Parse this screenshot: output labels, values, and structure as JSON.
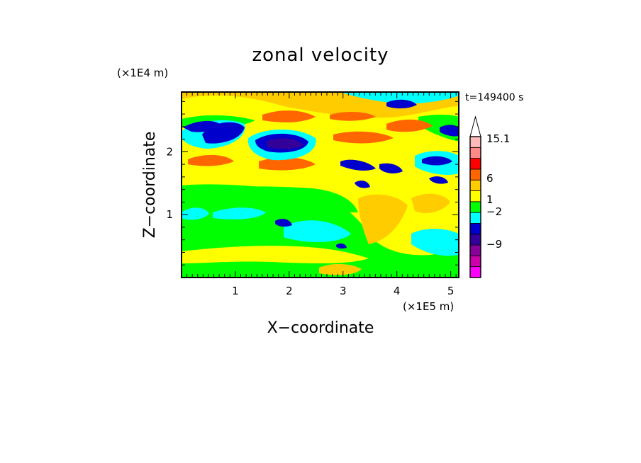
{
  "chart_data": {
    "type": "heatmap",
    "title": "zonal velocity",
    "xlabel": "X−coordinate",
    "ylabel": "Z−coordinate",
    "x_unit_label": "(×1E5 m)",
    "y_unit_label": "(×1E4 m)",
    "time_label": "t=149400 s",
    "xlim": [
      0,
      5.15
    ],
    "ylim": [
      0,
      2.95
    ],
    "x_ticks": [
      1,
      2,
      3,
      4,
      5
    ],
    "y_ticks": [
      1,
      2
    ],
    "x_tick_labels": [
      "1",
      "2",
      "3",
      "4",
      "5"
    ],
    "y_tick_labels": [
      "1",
      "2"
    ],
    "colorbar": {
      "colors": [
        "#ff00ff",
        "#cc00aa",
        "#880099",
        "#330099",
        "#0000cc",
        "#00ffff",
        "#00ff00",
        "#ffff00",
        "#ffcc00",
        "#ff6600",
        "#ff0000",
        "#ff8888",
        "#ffbbbb",
        "#ffffff"
      ],
      "labels": [
        {
          "text": "15.1",
          "level": 15.1
        },
        {
          "text": "6",
          "level": 6
        },
        {
          "text": "1",
          "level": 1
        },
        {
          "text": "−2",
          "level": -2
        },
        {
          "text": "−9",
          "level": -9
        }
      ]
    },
    "field_features": [
      {
        "kind": "negative-jet",
        "x": 0.9,
        "z": 2.4,
        "value": -9
      },
      {
        "kind": "negative-jet",
        "x": 1.8,
        "z": 2.2,
        "value": -10
      },
      {
        "kind": "negative-jet",
        "x": 4.6,
        "z": 2.6,
        "value": -5
      },
      {
        "kind": "positive-band",
        "x": 2.5,
        "z": 2.5,
        "value": 6
      },
      {
        "kind": "positive-band",
        "x": 4.2,
        "z": 2.5,
        "value": 6
      },
      {
        "kind": "positive-band",
        "x": 2.0,
        "z": 1.8,
        "value": 5
      }
    ]
  }
}
